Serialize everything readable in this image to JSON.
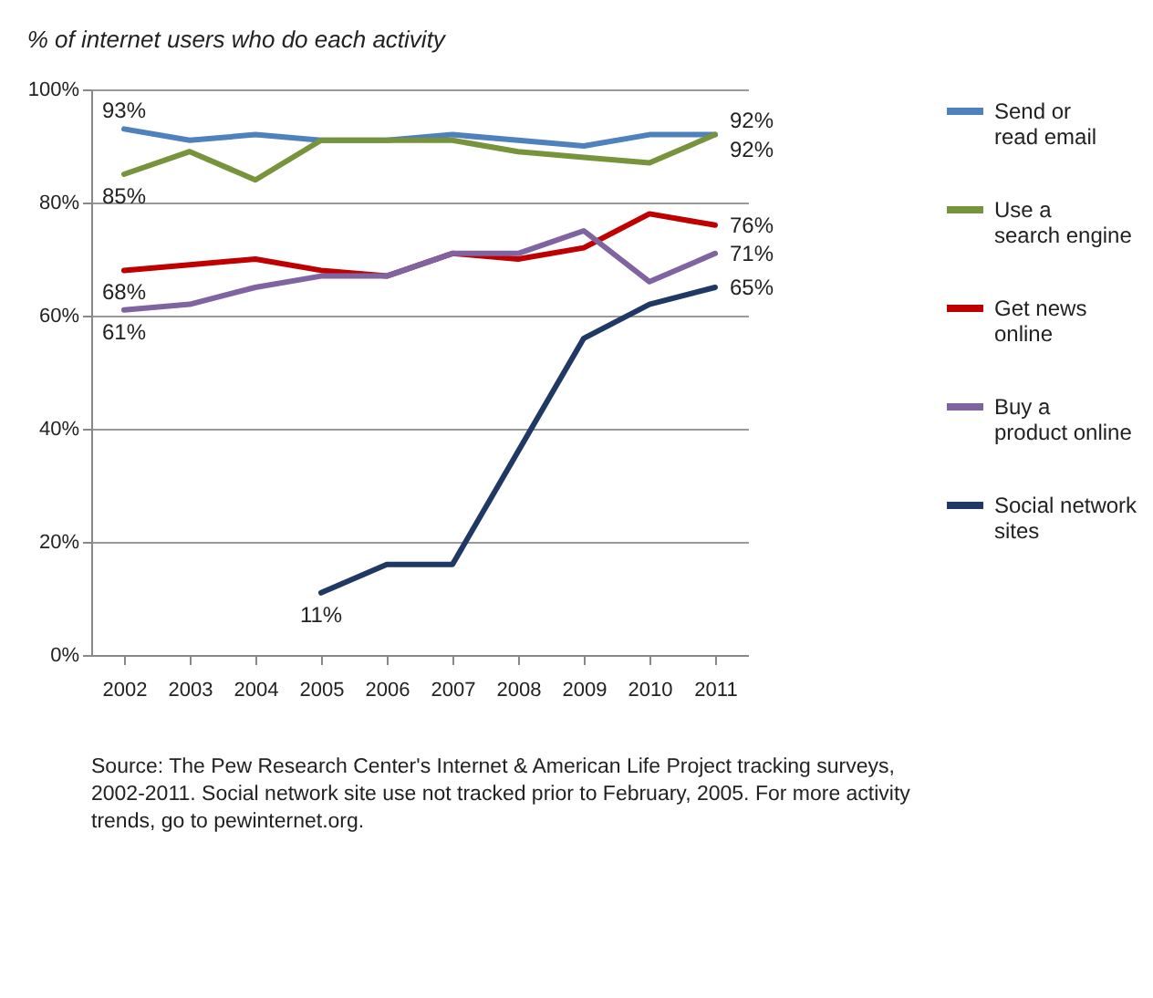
{
  "chart_data": {
    "type": "line",
    "title": "% of internet users who do each activity",
    "categories": [
      "2002",
      "2003",
      "2004",
      "2005",
      "2006",
      "2007",
      "2008",
      "2009",
      "2010",
      "2011"
    ],
    "series": [
      {
        "name": "Send or read email",
        "color": "#4f81bd",
        "values": [
          93,
          91,
          92,
          91,
          91,
          92,
          91,
          90,
          92,
          92
        ],
        "value_labels": [
          "93%",
          null,
          null,
          null,
          null,
          null,
          null,
          null,
          null,
          "92%"
        ]
      },
      {
        "name": "Use a search engine",
        "color": "#77933c",
        "values": [
          85,
          89,
          84,
          91,
          91,
          91,
          89,
          88,
          87,
          92
        ],
        "value_labels": [
          "85%",
          null,
          null,
          null,
          null,
          null,
          null,
          null,
          null,
          "92%"
        ]
      },
      {
        "name": "Get news online",
        "color": "#c00000",
        "values": [
          68,
          69,
          70,
          68,
          67,
          71,
          70,
          72,
          78,
          76
        ],
        "value_labels": [
          "68%",
          null,
          null,
          null,
          null,
          null,
          null,
          null,
          null,
          "76%"
        ]
      },
      {
        "name": "Buy a product online",
        "color": "#8064a2",
        "values": [
          61,
          62,
          65,
          67,
          67,
          71,
          71,
          75,
          66,
          71
        ],
        "value_labels": [
          "61%",
          null,
          null,
          null,
          null,
          null,
          null,
          null,
          null,
          "71%"
        ]
      },
      {
        "name": "Social network sites",
        "color": "#1f3864",
        "values": [
          null,
          null,
          null,
          11,
          16,
          16,
          36,
          56,
          62,
          65
        ],
        "value_labels": [
          null,
          null,
          null,
          "11%",
          null,
          null,
          null,
          null,
          null,
          "65%"
        ]
      }
    ],
    "ylim": [
      0,
      100
    ],
    "yticks": [
      {
        "value": 0,
        "label": "0%"
      },
      {
        "value": 20,
        "label": "20%"
      },
      {
        "value": 40,
        "label": "40%"
      },
      {
        "value": 60,
        "label": "60%"
      },
      {
        "value": 80,
        "label": "80%"
      },
      {
        "value": 100,
        "label": "100%"
      }
    ],
    "grid": "y",
    "legend": "right",
    "marker": "none",
    "line_style": "solid",
    "annotations": [
      "Source: The Pew Research Center's Internet & American Life Project tracking surveys, 2002-2011. Social network site use not tracked prior to February, 2005. For more activity trends, go to pewinternet.org."
    ]
  }
}
